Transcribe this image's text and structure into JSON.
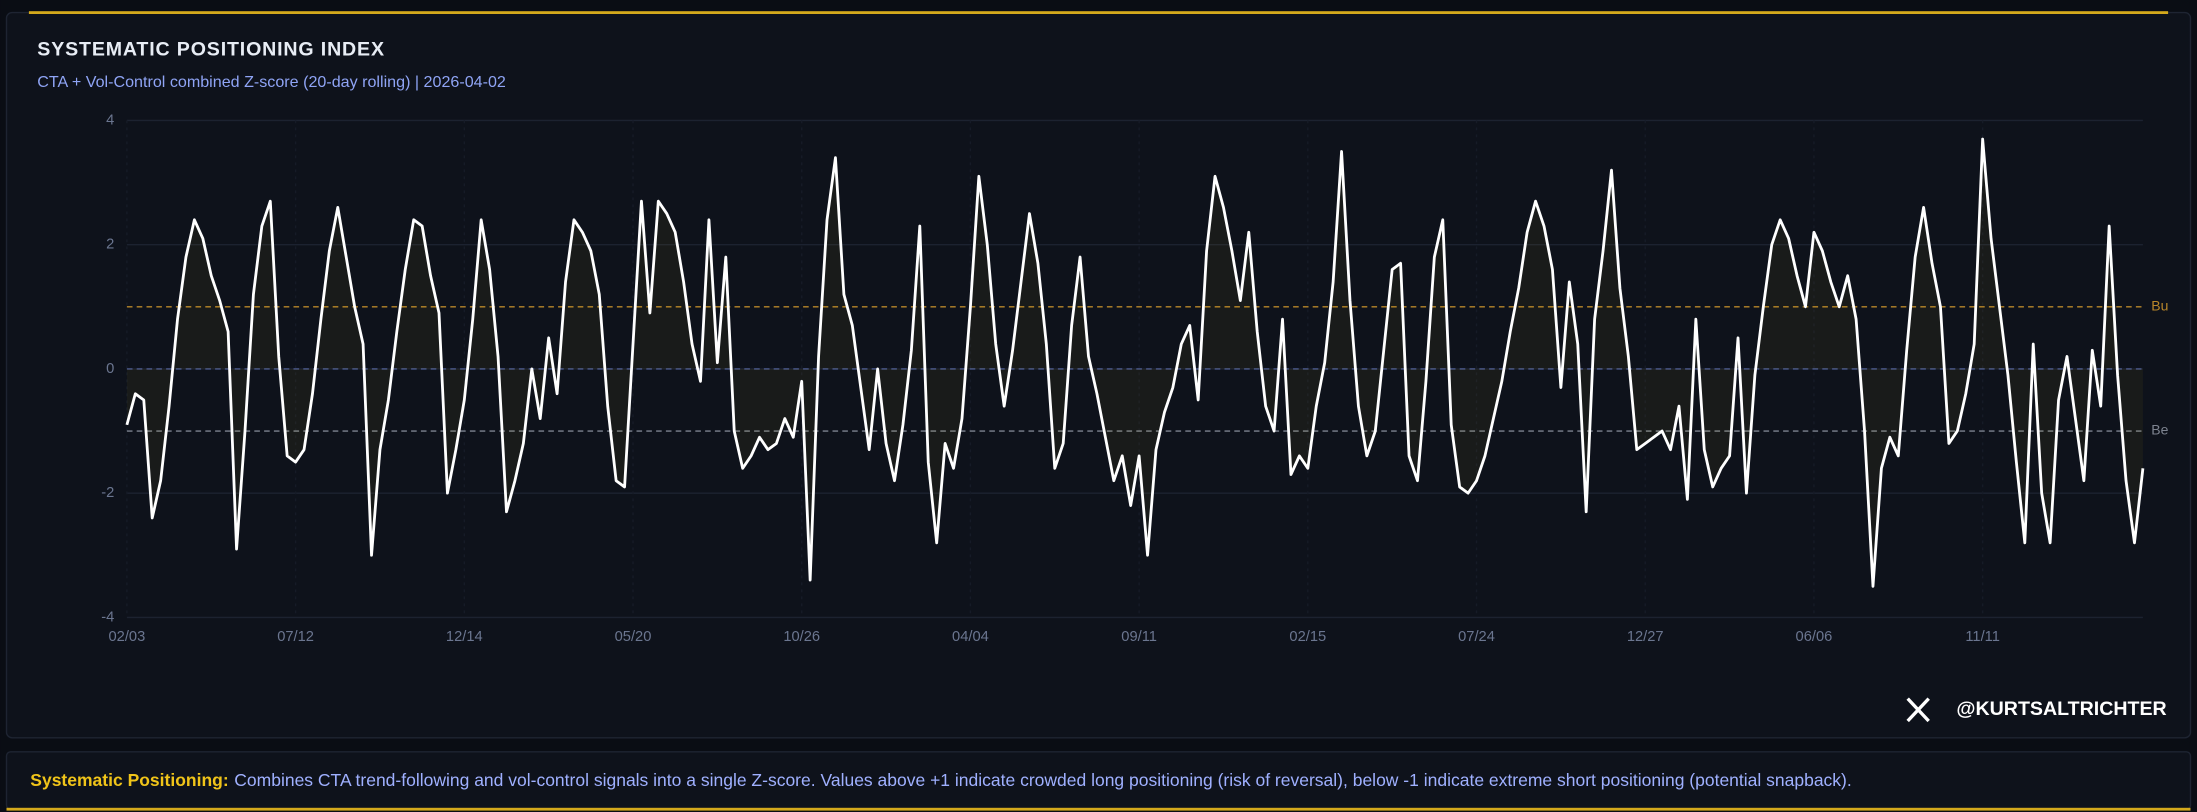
{
  "chart_data": {
    "type": "line",
    "title": "SYSTEMATIC POSITIONING INDEX",
    "subtitle": "CTA + Vol-Control combined Z-score (20-day rolling) | 2026-04-02",
    "categories": [
      "02/03",
      null,
      null,
      null,
      null,
      null,
      null,
      null,
      null,
      null,
      null,
      null,
      null,
      null,
      null,
      null,
      null,
      null,
      null,
      null,
      "07/12",
      null,
      null,
      null,
      null,
      null,
      null,
      null,
      null,
      null,
      null,
      null,
      null,
      null,
      null,
      null,
      null,
      null,
      null,
      null,
      "12/14",
      null,
      null,
      null,
      null,
      null,
      null,
      null,
      null,
      null,
      null,
      null,
      null,
      null,
      null,
      null,
      null,
      null,
      null,
      null,
      "05/20",
      null,
      null,
      null,
      null,
      null,
      null,
      null,
      null,
      null,
      null,
      null,
      null,
      null,
      null,
      null,
      null,
      null,
      null,
      null,
      "10/26",
      null,
      null,
      null,
      null,
      null,
      null,
      null,
      null,
      null,
      null,
      null,
      null,
      null,
      null,
      null,
      null,
      null,
      null,
      null,
      "04/04",
      null,
      null,
      null,
      null,
      null,
      null,
      null,
      null,
      null,
      null,
      null,
      null,
      null,
      null,
      null,
      null,
      null,
      null,
      null,
      "09/11",
      null,
      null,
      null,
      null,
      null,
      null,
      null,
      null,
      null,
      null,
      null,
      null,
      null,
      null,
      null,
      null,
      null,
      null,
      null,
      "02/15",
      null,
      null,
      null,
      null,
      null,
      null,
      null,
      null,
      null,
      null,
      null,
      null,
      null,
      null,
      null,
      null,
      null,
      null,
      null,
      "07/24",
      null,
      null,
      null,
      null,
      null,
      null,
      null,
      null,
      null,
      null,
      null,
      null,
      null,
      null,
      null,
      null,
      null,
      null,
      null,
      "12/27",
      null,
      null,
      null,
      null,
      null,
      null,
      null,
      null,
      null,
      null,
      null,
      null,
      null,
      null,
      null,
      null,
      null,
      null,
      null,
      "06/06",
      null,
      null,
      null,
      null,
      null,
      null,
      null,
      null,
      null,
      null,
      null,
      null,
      null,
      null,
      null,
      null,
      null,
      null,
      null,
      "11/11",
      null,
      null,
      null,
      null,
      null,
      null,
      null,
      null,
      null,
      null,
      null,
      null,
      null,
      null,
      null,
      null,
      null,
      null,
      null
    ],
    "values": [
      -0.9,
      -0.4,
      -0.5,
      -2.4,
      -1.8,
      -0.6,
      0.8,
      1.8,
      2.4,
      2.1,
      1.5,
      1.1,
      0.6,
      -2.9,
      -1.0,
      1.2,
      2.3,
      2.7,
      0.2,
      -1.4,
      -1.5,
      -1.3,
      -0.4,
      0.8,
      1.9,
      2.6,
      1.8,
      1.0,
      0.4,
      -3.0,
      -1.3,
      -0.5,
      0.6,
      1.6,
      2.4,
      2.3,
      1.5,
      0.9,
      -2.0,
      -1.3,
      -0.5,
      0.8,
      2.4,
      1.6,
      0.2,
      -2.3,
      -1.8,
      -1.2,
      0.0,
      -0.8,
      0.5,
      -0.4,
      1.4,
      2.4,
      2.2,
      1.9,
      1.2,
      -0.6,
      -1.8,
      -1.9,
      0.4,
      2.7,
      0.9,
      2.7,
      2.5,
      2.2,
      1.4,
      0.4,
      -0.2,
      2.4,
      0.1,
      1.8,
      -1.0,
      -1.6,
      -1.4,
      -1.1,
      -1.3,
      -1.2,
      -0.8,
      -1.1,
      -0.2,
      -3.4,
      0.2,
      2.4,
      3.4,
      1.2,
      0.7,
      -0.3,
      -1.3,
      0.0,
      -1.2,
      -1.8,
      -0.9,
      0.3,
      2.3,
      -1.5,
      -2.8,
      -1.2,
      -1.6,
      -0.8,
      1.0,
      3.1,
      2.0,
      0.4,
      -0.6,
      0.3,
      1.4,
      2.5,
      1.7,
      0.4,
      -1.6,
      -1.2,
      0.7,
      1.8,
      0.2,
      -0.4,
      -1.1,
      -1.8,
      -1.4,
      -2.2,
      -1.4,
      -3.0,
      -1.3,
      -0.7,
      -0.3,
      0.4,
      0.7,
      -0.5,
      1.9,
      3.1,
      2.6,
      1.9,
      1.1,
      2.2,
      0.6,
      -0.6,
      -1.0,
      0.8,
      -1.7,
      -1.4,
      -1.6,
      -0.6,
      0.1,
      1.4,
      3.5,
      1.1,
      -0.6,
      -1.4,
      -1.0,
      0.3,
      1.6,
      1.7,
      -1.4,
      -1.8,
      -0.2,
      1.8,
      2.4,
      -0.9,
      -1.9,
      -2.0,
      -1.8,
      -1.4,
      -0.8,
      -0.2,
      0.6,
      1.3,
      2.2,
      2.7,
      2.3,
      1.6,
      -0.3,
      1.4,
      0.4,
      -2.3,
      0.8,
      1.9,
      3.2,
      1.3,
      0.2,
      -1.3,
      -1.2,
      -1.1,
      -1.0,
      -1.3,
      -0.6,
      -2.1,
      0.8,
      -1.3,
      -1.9,
      -1.6,
      -1.4,
      0.5,
      -2.0,
      -0.1,
      1.0,
      2.0,
      2.4,
      2.1,
      1.5,
      1.0,
      2.2,
      1.9,
      1.4,
      1.0,
      1.5,
      0.8,
      -1.0,
      -3.5,
      -1.6,
      -1.1,
      -1.4,
      0.3,
      1.8,
      2.6,
      1.7,
      1.0,
      -1.2,
      -1.0,
      -0.4,
      0.4,
      3.7,
      2.1,
      1.0,
      -0.1,
      -1.5,
      -2.8,
      0.4,
      -2.0,
      -2.8,
      -0.5,
      0.2,
      -0.8,
      -1.8,
      0.3,
      -0.6,
      2.3,
      -0.1,
      -1.8,
      -2.8,
      -1.6
    ],
    "color": "#ffffff",
    "ylim": [
      -4,
      4
    ],
    "yticks": [
      -4,
      -2,
      0,
      2,
      4
    ],
    "grid": true,
    "reference_lines": [
      {
        "value": 1,
        "label": "Bu",
        "color": "#b8862a"
      },
      {
        "value": 0,
        "color": "#4a5a8f"
      },
      {
        "value": -1,
        "label": "Be",
        "color": "#7d838f"
      }
    ]
  },
  "handle": "@KURTSALTRICHTER",
  "footer": {
    "label": "Systematic Positioning:",
    "text": "Combines CTA trend-following and vol-control signals into a single Z-score. Values above +1 indicate crowded long positioning (risk of reversal), below -1 indicate extreme short positioning (potential snapback)."
  }
}
